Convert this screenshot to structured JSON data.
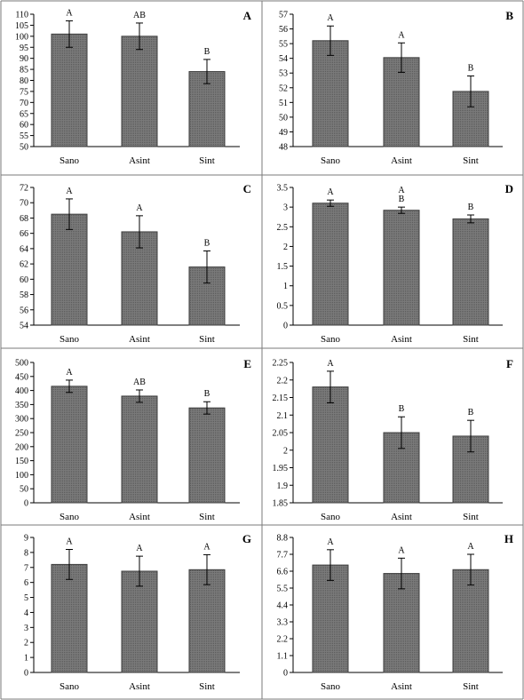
{
  "style": {
    "bar_fill": "#6f6f6f",
    "bar_stroke": "#3c3c3c",
    "border": "#7a7a7a"
  },
  "chart_data": [
    {
      "panel": "A",
      "type": "bar",
      "categories": [
        "Sano",
        "Asint",
        "Sint"
      ],
      "values": [
        101,
        100,
        84
      ],
      "errors": [
        6,
        6,
        5.5
      ],
      "letters": [
        "A",
        "AB",
        "B"
      ],
      "ylim": [
        50,
        110
      ],
      "ticks": [
        50,
        55,
        60,
        65,
        70,
        75,
        80,
        85,
        90,
        95,
        100,
        105,
        110
      ]
    },
    {
      "panel": "B",
      "type": "bar",
      "categories": [
        "Sano",
        "Asint",
        "Sint"
      ],
      "values": [
        55.2,
        54.05,
        51.75
      ],
      "errors": [
        1.0,
        1.0,
        1.05
      ],
      "letters": [
        "A",
        "A",
        "B"
      ],
      "ylim": [
        48,
        57
      ],
      "ticks": [
        48,
        49,
        50,
        51,
        52,
        53,
        54,
        55,
        56,
        57
      ]
    },
    {
      "panel": "C",
      "type": "bar",
      "categories": [
        "Sano",
        "Asint",
        "Sint"
      ],
      "values": [
        68.5,
        66.2,
        61.6
      ],
      "errors": [
        2.0,
        2.1,
        2.1
      ],
      "letters": [
        "A",
        "A",
        "B"
      ],
      "ylim": [
        54,
        72
      ],
      "ticks": [
        54,
        56,
        58,
        60,
        62,
        64,
        66,
        68,
        70,
        72
      ]
    },
    {
      "panel": "D",
      "type": "bar",
      "categories": [
        "Sano",
        "Asint",
        "Sint"
      ],
      "values": [
        3.1,
        2.92,
        2.7
      ],
      "errors": [
        0.08,
        0.08,
        0.1
      ],
      "letters": [
        "A",
        "A\nB",
        "B"
      ],
      "ylim": [
        0,
        3.5
      ],
      "ticks": [
        "0",
        "0.5",
        "1",
        "1.5",
        "2",
        "2.5",
        "3",
        "3.5"
      ]
    },
    {
      "panel": "E",
      "type": "bar",
      "categories": [
        "Sano",
        "Asint",
        "Sint"
      ],
      "values": [
        415,
        380,
        338
      ],
      "errors": [
        22,
        22,
        22
      ],
      "letters": [
        "A",
        "AB",
        "B"
      ],
      "ylim": [
        0,
        500
      ],
      "ticks": [
        0,
        50,
        100,
        150,
        200,
        250,
        300,
        350,
        400,
        450,
        500
      ]
    },
    {
      "panel": "F",
      "type": "bar",
      "categories": [
        "Sano",
        "Asint",
        "Sint"
      ],
      "values": [
        2.18,
        2.05,
        2.04
      ],
      "errors": [
        0.045,
        0.045,
        0.045
      ],
      "letters": [
        "A",
        "B",
        "B"
      ],
      "ylim": [
        1.85,
        2.25
      ],
      "ticks": [
        "1.85",
        "1.9",
        "1.95",
        "2",
        "2.05",
        "2.1",
        "2.15",
        "2.2",
        "2.25"
      ]
    },
    {
      "panel": "G",
      "type": "bar",
      "categories": [
        "Sano",
        "Asint",
        "Sint"
      ],
      "values": [
        7.2,
        6.75,
        6.85
      ],
      "errors": [
        1.0,
        1.0,
        1.0
      ],
      "letters": [
        "A",
        "A",
        "A"
      ],
      "ylim": [
        0,
        9
      ],
      "ticks": [
        0,
        1,
        2,
        3,
        4,
        5,
        6,
        7,
        8,
        9
      ]
    },
    {
      "panel": "H",
      "type": "bar",
      "categories": [
        "Sano",
        "Asint",
        "Sint"
      ],
      "values": [
        7.0,
        6.45,
        6.7
      ],
      "errors": [
        1.0,
        1.0,
        1.0
      ],
      "letters": [
        "A",
        "A",
        "A"
      ],
      "ylim": [
        0,
        8.8
      ],
      "ticks": [
        "0",
        "1.1",
        "2.2",
        "3.3",
        "4.4",
        "5.5",
        "6.6",
        "7.7",
        "8.8"
      ]
    }
  ]
}
